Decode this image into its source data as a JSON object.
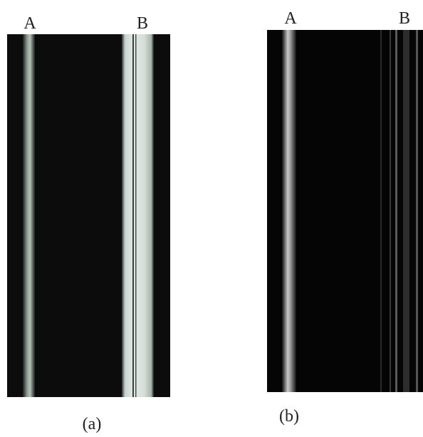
{
  "panels": [
    {
      "caption": "(a)",
      "labels": [
        "A",
        "B"
      ]
    },
    {
      "caption": "(b)",
      "labels": [
        "A",
        "B"
      ]
    }
  ]
}
